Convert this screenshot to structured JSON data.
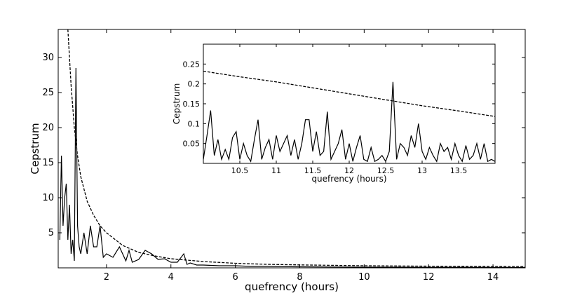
{
  "chart_data": [
    {
      "type": "line",
      "xlabel": "quefrency (hours)",
      "ylabel": "Cepstrum",
      "xlim": [
        0.5,
        15
      ],
      "ylim": [
        0,
        34
      ],
      "xticks": [
        2,
        4,
        6,
        8,
        10,
        12,
        14
      ],
      "yticks": [
        5,
        10,
        15,
        20,
        25,
        30
      ],
      "grid": false,
      "series": [
        {
          "style": "solid",
          "x": [
            0.55,
            0.6,
            0.65,
            0.7,
            0.75,
            0.8,
            0.85,
            0.9,
            0.95,
            1.0,
            1.05,
            1.1,
            1.15,
            1.2,
            1.3,
            1.4,
            1.5,
            1.6,
            1.7,
            1.8,
            1.9,
            2.0,
            2.2,
            2.4,
            2.6,
            2.7,
            2.8,
            3.0,
            3.2,
            3.4,
            3.6,
            3.8,
            4.0,
            4.2,
            4.4,
            4.5,
            4.6,
            4.8,
            5.0,
            5.5,
            6.0,
            6.5,
            7.0,
            8.0,
            9.0,
            10.0,
            11.0,
            12.0,
            13.0,
            14.0,
            15.0
          ],
          "y": [
            4,
            16,
            6,
            10,
            12,
            4,
            9,
            2,
            4,
            1,
            28.5,
            6,
            3,
            2,
            5,
            2,
            6,
            3,
            3,
            6,
            1.5,
            2,
            1.5,
            3,
            1,
            2.5,
            0.8,
            1.2,
            2.5,
            2,
            1.2,
            1.3,
            0.8,
            0.8,
            2,
            0.5,
            0.7,
            0.4,
            0.4,
            0.3,
            0.3,
            0.2,
            0.2,
            0.15,
            0.12,
            0.1,
            0.1,
            0.08,
            0.08,
            0.06,
            0.05
          ]
        },
        {
          "style": "dashed",
          "x": [
            0.8,
            0.9,
            1.0,
            1.1,
            1.2,
            1.4,
            1.6,
            1.8,
            2.0,
            2.5,
            3.0,
            3.5,
            4.0,
            5.0,
            6.0,
            7.0,
            8.0,
            10.0,
            12.0,
            14.0,
            15.0
          ],
          "y": [
            34,
            26,
            20,
            16,
            13,
            9.5,
            7.5,
            6,
            5,
            3.2,
            2.2,
            1.7,
            1.3,
            0.9,
            0.65,
            0.5,
            0.42,
            0.3,
            0.24,
            0.2,
            0.18
          ]
        }
      ]
    },
    {
      "type": "line",
      "xlabel": "quefrency (hours)",
      "ylabel": "Cepstrum",
      "xlim": [
        10,
        14
      ],
      "ylim": [
        0,
        0.3
      ],
      "xticks": [
        10.5,
        11,
        11.5,
        12,
        12.5,
        13,
        13.5
      ],
      "yticks": [
        0.05,
        0.1,
        0.15,
        0.2,
        0.25
      ],
      "grid": false,
      "series": [
        {
          "style": "solid",
          "x": [
            10.0,
            10.05,
            10.1,
            10.15,
            10.2,
            10.25,
            10.3,
            10.35,
            10.4,
            10.45,
            10.5,
            10.55,
            10.6,
            10.65,
            10.7,
            10.75,
            10.8,
            10.85,
            10.9,
            10.95,
            11.0,
            11.05,
            11.1,
            11.15,
            11.2,
            11.25,
            11.3,
            11.35,
            11.4,
            11.45,
            11.5,
            11.55,
            11.6,
            11.65,
            11.7,
            11.75,
            11.8,
            11.85,
            11.9,
            11.95,
            12.0,
            12.05,
            12.1,
            12.15,
            12.2,
            12.25,
            12.3,
            12.35,
            12.4,
            12.45,
            12.5,
            12.55,
            12.6,
            12.65,
            12.7,
            12.75,
            12.8,
            12.85,
            12.9,
            12.95,
            13.0,
            13.05,
            13.1,
            13.15,
            13.2,
            13.25,
            13.3,
            13.35,
            13.4,
            13.45,
            13.5,
            13.55,
            13.6,
            13.65,
            13.7,
            13.75,
            13.8,
            13.85,
            13.9,
            13.95,
            14.0
          ],
          "y": [
            0.01,
            0.07,
            0.133,
            0.02,
            0.06,
            0.01,
            0.035,
            0.01,
            0.065,
            0.08,
            0.01,
            0.05,
            0.02,
            0.005,
            0.06,
            0.11,
            0.01,
            0.04,
            0.06,
            0.01,
            0.07,
            0.03,
            0.05,
            0.07,
            0.02,
            0.06,
            0.01,
            0.05,
            0.11,
            0.11,
            0.03,
            0.08,
            0.02,
            0.03,
            0.13,
            0.01,
            0.03,
            0.05,
            0.085,
            0.01,
            0.05,
            0.005,
            0.04,
            0.07,
            0.01,
            0.005,
            0.04,
            0.005,
            0.01,
            0.02,
            0.005,
            0.03,
            0.205,
            0.01,
            0.05,
            0.04,
            0.02,
            0.07,
            0.04,
            0.1,
            0.03,
            0.01,
            0.04,
            0.02,
            0.005,
            0.05,
            0.03,
            0.04,
            0.01,
            0.05,
            0.02,
            0.005,
            0.045,
            0.01,
            0.02,
            0.05,
            0.01,
            0.05,
            0.005,
            0.01,
            0.005
          ]
        },
        {
          "style": "dashed",
          "x": [
            10.0,
            10.5,
            11.0,
            11.5,
            12.0,
            12.5,
            13.0,
            13.5,
            14.0
          ],
          "y": [
            0.232,
            0.218,
            0.205,
            0.19,
            0.175,
            0.16,
            0.145,
            0.132,
            0.118
          ]
        }
      ]
    }
  ]
}
